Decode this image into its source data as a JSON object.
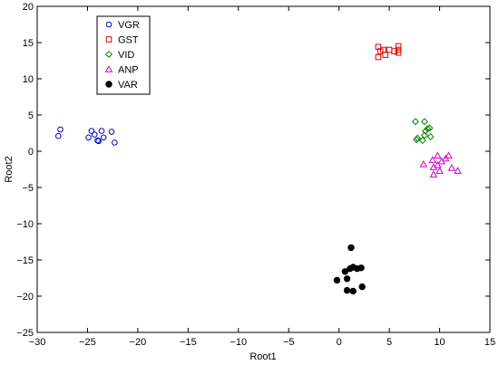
{
  "chart_data": {
    "type": "scatter",
    "xlabel": "Root1",
    "ylabel": "Root2",
    "xlim": [
      -30,
      15
    ],
    "ylim": [
      -25,
      20
    ],
    "x_ticks": [
      -30,
      -25,
      -20,
      -15,
      -10,
      -5,
      0,
      5,
      10,
      15
    ],
    "y_ticks": [
      -25,
      -20,
      -15,
      -10,
      -5,
      0,
      5,
      10,
      15,
      20
    ],
    "x_tick_labels": [
      "−30",
      "−25",
      "−20",
      "−15",
      "−10",
      "−5",
      "0",
      "5",
      "10",
      "15"
    ],
    "y_tick_labels": [
      "−25",
      "−20",
      "−15",
      "−10",
      "−5",
      "0",
      "5",
      "10",
      "15",
      "20"
    ],
    "grid": false,
    "legend": {
      "placement": "top-left"
    },
    "series": [
      {
        "name": "VGR",
        "marker": "circle-open",
        "color": "#0000cc",
        "points": [
          [
            -27.7,
            3.0
          ],
          [
            -27.9,
            2.1
          ],
          [
            -24.6,
            2.8
          ],
          [
            -24.3,
            2.3
          ],
          [
            -24.9,
            1.9
          ],
          [
            -24.0,
            1.5
          ],
          [
            -23.6,
            2.8
          ],
          [
            -23.4,
            1.9
          ],
          [
            -22.6,
            2.7
          ],
          [
            -22.3,
            1.2
          ],
          [
            -23.9,
            1.4
          ]
        ]
      },
      {
        "name": "GST",
        "marker": "square-open",
        "color": "#dd0000",
        "points": [
          [
            3.9,
            14.4
          ],
          [
            4.1,
            13.8
          ],
          [
            4.4,
            14.0
          ],
          [
            4.6,
            13.3
          ],
          [
            5.0,
            14.0
          ],
          [
            5.5,
            13.8
          ],
          [
            5.9,
            14.5
          ],
          [
            5.9,
            14.0
          ],
          [
            5.9,
            13.6
          ],
          [
            3.9,
            13.0
          ]
        ]
      },
      {
        "name": "VID",
        "marker": "diamond-open",
        "color": "#008800",
        "points": [
          [
            7.6,
            4.1
          ],
          [
            8.5,
            4.1
          ],
          [
            9.0,
            3.2
          ],
          [
            8.6,
            2.8
          ],
          [
            8.5,
            2.2
          ],
          [
            9.1,
            2.0
          ],
          [
            7.8,
            1.8
          ],
          [
            7.7,
            1.6
          ],
          [
            8.3,
            1.5
          ],
          [
            8.8,
            3.1
          ]
        ]
      },
      {
        "name": "ANP",
        "marker": "triangle-open",
        "color": "#cc00cc",
        "points": [
          [
            9.8,
            -0.6
          ],
          [
            9.3,
            -1.2
          ],
          [
            10.6,
            -1.0
          ],
          [
            10.9,
            -0.6
          ],
          [
            8.4,
            -1.8
          ],
          [
            9.4,
            -2.2
          ],
          [
            9.8,
            -1.9
          ],
          [
            10.0,
            -2.7
          ],
          [
            11.2,
            -2.3
          ],
          [
            11.8,
            -2.7
          ],
          [
            9.4,
            -3.2
          ],
          [
            10.2,
            -1.4
          ]
        ]
      },
      {
        "name": "VAR",
        "marker": "circle-filled",
        "color": "#000000",
        "points": [
          [
            1.2,
            -13.3
          ],
          [
            1.1,
            -16.2
          ],
          [
            1.4,
            -16.0
          ],
          [
            0.6,
            -16.6
          ],
          [
            1.8,
            -16.2
          ],
          [
            2.2,
            -16.1
          ],
          [
            -0.2,
            -17.8
          ],
          [
            0.8,
            -17.6
          ],
          [
            2.3,
            -18.7
          ],
          [
            0.8,
            -19.2
          ],
          [
            1.4,
            -19.3
          ]
        ]
      }
    ]
  }
}
